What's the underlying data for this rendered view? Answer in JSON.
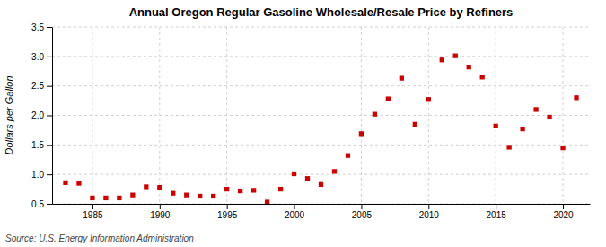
{
  "chart_data": {
    "type": "scatter",
    "title": "Annual Oregon Regular Gasoline Wholesale/Resale Price by Refiners",
    "y_label": "Dollars per Gallon",
    "annotations": [
      "Source: U.S. Energy Information Administration"
    ],
    "x": [
      1983,
      1984,
      1985,
      1986,
      1987,
      1988,
      1989,
      1990,
      1991,
      1992,
      1993,
      1994,
      1995,
      1996,
      1997,
      1998,
      1999,
      2000,
      2001,
      2002,
      2003,
      2004,
      2005,
      2006,
      2007,
      2008,
      2009,
      2010,
      2011,
      2012,
      2013,
      2014,
      2015,
      2016,
      2017,
      2018,
      2019,
      2020,
      2021
    ],
    "values": [
      0.86,
      0.85,
      0.6,
      0.6,
      0.6,
      0.65,
      0.79,
      0.78,
      0.68,
      0.65,
      0.63,
      0.63,
      0.75,
      0.72,
      0.73,
      0.53,
      0.75,
      1.01,
      0.93,
      0.83,
      1.05,
      1.32,
      1.69,
      2.02,
      2.28,
      2.63,
      1.85,
      2.27,
      2.94,
      3.01,
      2.82,
      2.65,
      1.82,
      1.46,
      1.77,
      2.1,
      1.97,
      1.45,
      2.3
    ],
    "color": "#cc0000",
    "marker": "square",
    "xlim": [
      1982,
      2022
    ],
    "ylim": [
      0.5,
      3.5
    ],
    "xticks": [
      1985,
      1990,
      1995,
      2000,
      2005,
      2010,
      2015,
      2020
    ],
    "yticks": [
      0.5,
      {
        "value": 1.0,
        "label": "1.0"
      },
      1.5,
      {
        "value": 2.0,
        "label": "2.0"
      },
      2.5,
      {
        "value": 3.0,
        "label": "3.0"
      },
      3.5
    ],
    "grid": true
  }
}
